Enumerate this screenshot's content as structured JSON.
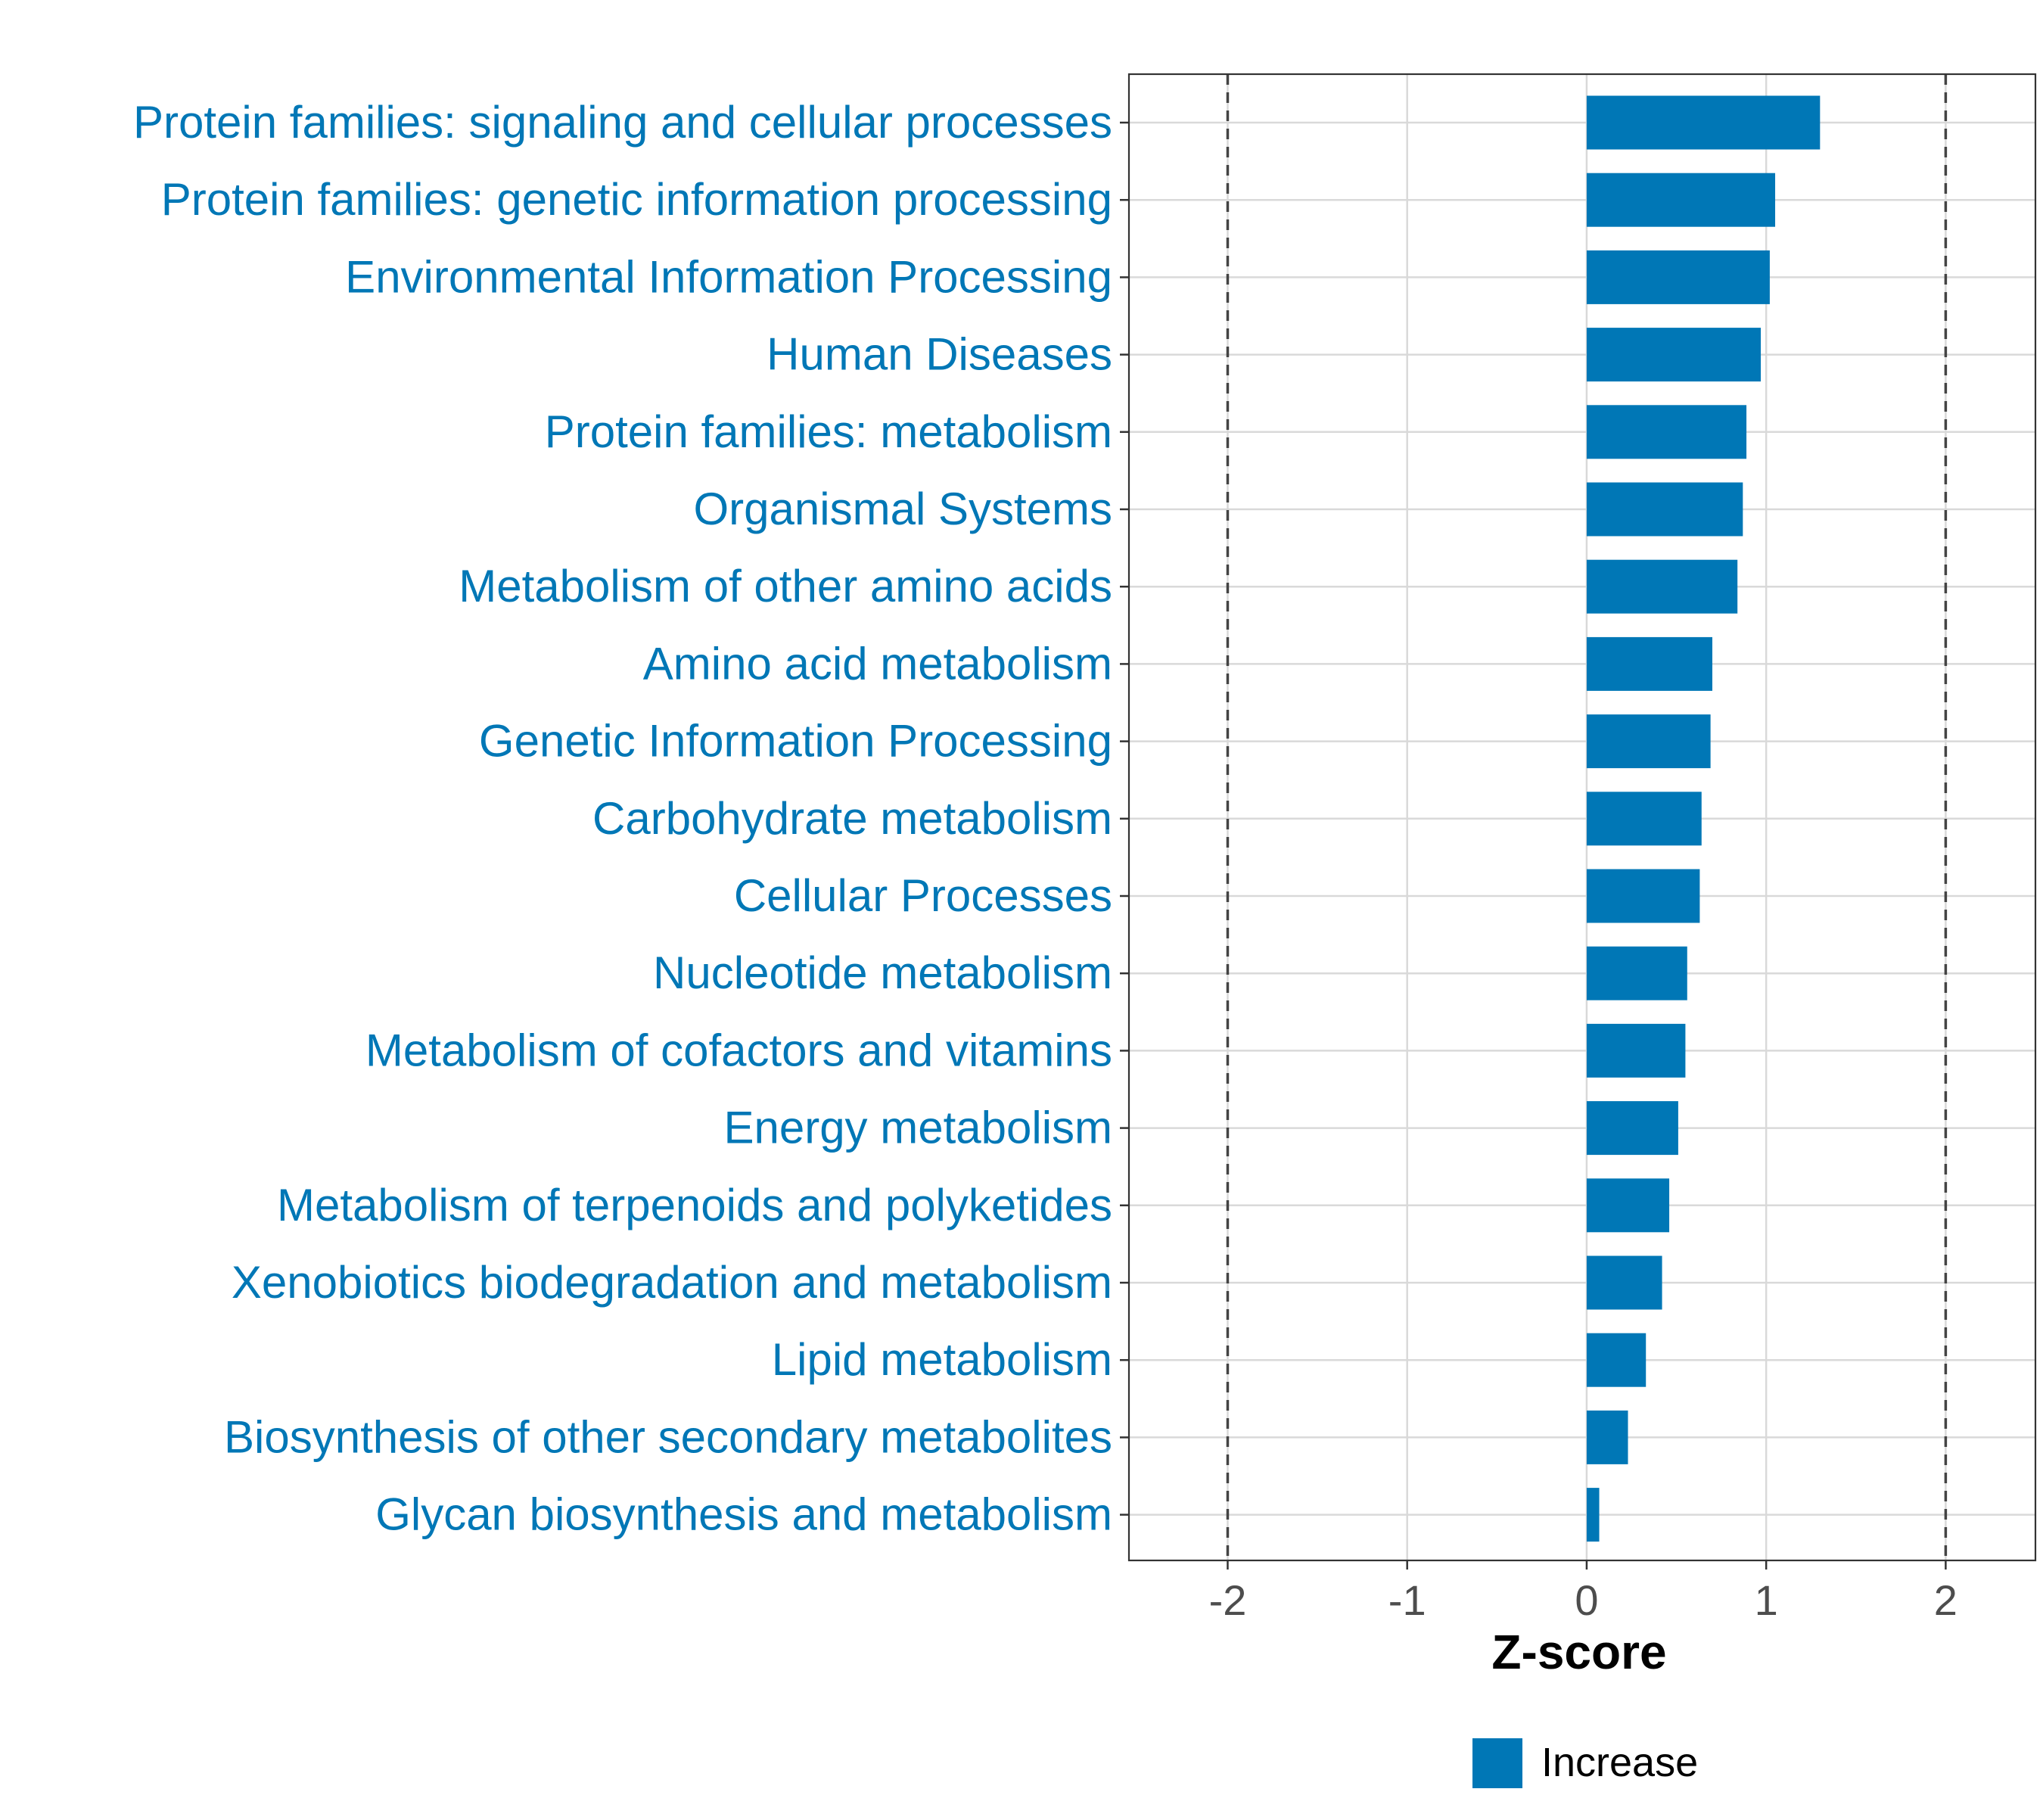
{
  "chart_data": {
    "type": "bar",
    "orientation": "horizontal",
    "title": "",
    "xlabel": "Z-score",
    "ylabel": "",
    "xlim": [
      -2.55,
      2.5
    ],
    "xticks": [
      -2,
      -1,
      0,
      1,
      2
    ],
    "xtick_labels": [
      "-2",
      "-1",
      "0",
      "1",
      "2"
    ],
    "reference_lines": [
      -2,
      2
    ],
    "grid": true,
    "bar_color": "#0077b6",
    "label_color": "#0077b6",
    "legend": {
      "placement": "bottom",
      "entries": [
        {
          "label": "Increase",
          "color": "#0077b6"
        }
      ]
    },
    "categories": [
      "Protein families: signaling and cellular processes",
      "Protein families: genetic information processing",
      "Environmental Information Processing",
      "Human Diseases",
      "Protein families: metabolism",
      "Organismal Systems",
      "Metabolism of other amino acids",
      "Amino acid metabolism",
      "Genetic Information Processing",
      "Carbohydrate metabolism",
      "Cellular Processes",
      "Nucleotide metabolism",
      "Metabolism of cofactors and vitamins",
      "Energy metabolism",
      "Metabolism of terpenoids and polyketides",
      "Xenobiotics biodegradation and metabolism",
      "Lipid metabolism",
      "Biosynthesis of other secondary metabolites",
      "Glycan biosynthesis and metabolism"
    ],
    "values": [
      1.3,
      1.05,
      1.02,
      0.97,
      0.89,
      0.87,
      0.84,
      0.7,
      0.69,
      0.64,
      0.63,
      0.56,
      0.55,
      0.51,
      0.46,
      0.42,
      0.33,
      0.23,
      0.07
    ]
  }
}
